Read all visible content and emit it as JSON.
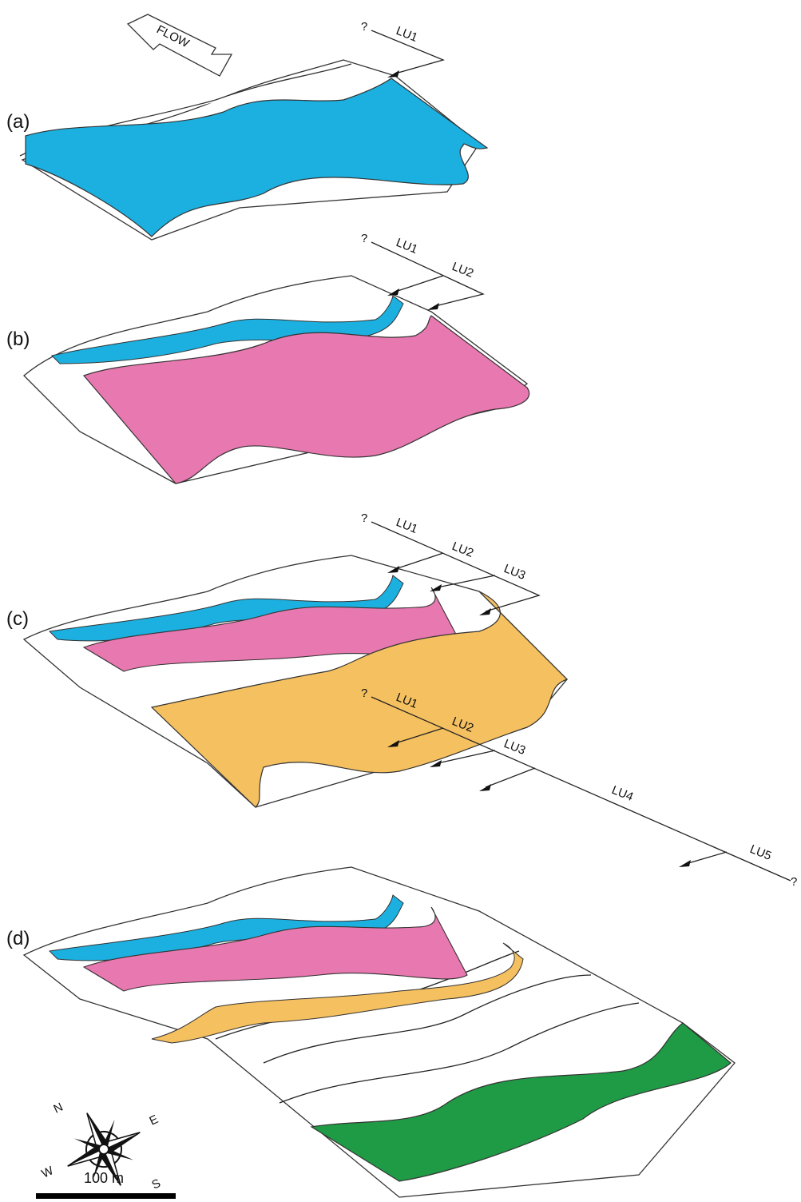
{
  "flow_label": "FLOW",
  "panels": [
    {
      "label": "(a)",
      "start": "?",
      "units": [
        "LU1"
      ]
    },
    {
      "label": "(b)",
      "start": "?",
      "units": [
        "LU1",
        "LU2"
      ]
    },
    {
      "label": "(c)",
      "start": "?",
      "units": [
        "LU1",
        "LU2",
        "LU3"
      ]
    },
    {
      "label": "(d)",
      "start": "?",
      "units": [
        "LU1",
        "LU2",
        "LU3",
        "LU4",
        "LU5"
      ],
      "end": "?"
    }
  ],
  "compass": {
    "n": "N",
    "e": "E",
    "s": "S",
    "w": "W"
  },
  "scale_bar": "100 m"
}
